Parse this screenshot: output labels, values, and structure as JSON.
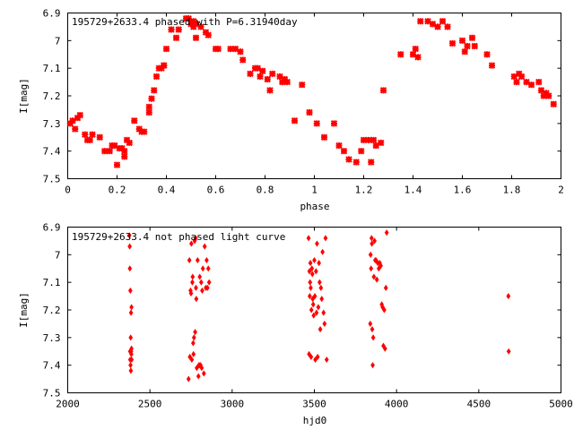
{
  "colors": {
    "points": "#ff0000",
    "frame": "#000000",
    "background": "#ffffff"
  },
  "chart_data": [
    {
      "type": "scatter",
      "title": "195729+2633.4 phased with P=6.31940day",
      "xlabel": "phase",
      "ylabel": "I[mag]",
      "xlim": [
        0,
        2
      ],
      "ylim": [
        6.9,
        7.5
      ],
      "y_inverted": true,
      "xticks": [
        "0",
        "0.2",
        "0.4",
        "0.6",
        "0.8",
        "1",
        "1.2",
        "1.4",
        "1.6",
        "1.8",
        "2"
      ],
      "yticks": [
        "6.9",
        "7",
        "7.1",
        "7.2",
        "7.3",
        "7.4",
        "7.5"
      ],
      "marker": "cross",
      "grid": false,
      "x": [
        0.01,
        0.02,
        0.03,
        0.04,
        0.05,
        0.07,
        0.08,
        0.09,
        0.1,
        0.13,
        0.15,
        0.17,
        0.18,
        0.19,
        0.2,
        0.21,
        0.22,
        0.23,
        0.23,
        0.24,
        0.25,
        0.27,
        0.29,
        0.3,
        0.31,
        0.33,
        0.33,
        0.34,
        0.35,
        0.36,
        0.37,
        0.38,
        0.39,
        0.39,
        0.4,
        0.42,
        0.44,
        0.45,
        0.48,
        0.49,
        0.5,
        0.51,
        0.51,
        0.52,
        0.52,
        0.54,
        0.56,
        0.57,
        0.6,
        0.61,
        0.66,
        0.68,
        0.7,
        0.71,
        0.74,
        0.76,
        0.77,
        0.78,
        0.79,
        0.81,
        0.82,
        0.83,
        0.86,
        0.87,
        0.88,
        0.89,
        0.92,
        0.95,
        0.98,
        1.01,
        1.04,
        1.08,
        1.1,
        1.12,
        1.14,
        1.17,
        1.19,
        1.2,
        1.22,
        1.23,
        1.24,
        1.25,
        1.27,
        1.28,
        1.35,
        1.4,
        1.41,
        1.42,
        1.43,
        1.46,
        1.48,
        1.5,
        1.52,
        1.54,
        1.56,
        1.6,
        1.61,
        1.62,
        1.64,
        1.65,
        1.7,
        1.72,
        1.81,
        1.82,
        1.83,
        1.84,
        1.86,
        1.88,
        1.91,
        1.92,
        1.93,
        1.94,
        1.95,
        1.97
      ],
      "y": [
        7.3,
        7.29,
        7.32,
        7.28,
        7.27,
        7.34,
        7.36,
        7.36,
        7.34,
        7.35,
        7.4,
        7.4,
        7.38,
        7.38,
        7.45,
        7.39,
        7.39,
        7.4,
        7.42,
        7.36,
        7.37,
        7.29,
        7.32,
        7.33,
        7.33,
        7.26,
        7.24,
        7.21,
        7.18,
        7.13,
        7.1,
        7.1,
        7.09,
        7.09,
        7.03,
        6.96,
        6.99,
        6.96,
        6.92,
        6.92,
        6.94,
        6.95,
        6.93,
        6.99,
        6.94,
        6.95,
        6.97,
        6.98,
        7.03,
        7.03,
        7.03,
        7.03,
        7.04,
        7.07,
        7.12,
        7.1,
        7.1,
        7.13,
        7.11,
        7.14,
        7.18,
        7.12,
        7.13,
        7.15,
        7.14,
        7.15,
        7.29,
        7.16,
        7.26,
        7.3,
        7.35,
        7.3,
        7.38,
        7.4,
        7.43,
        7.44,
        7.4,
        7.36,
        7.36,
        7.44,
        7.36,
        7.38,
        7.37,
        7.18,
        7.05,
        7.05,
        7.03,
        7.06,
        6.93,
        6.93,
        6.94,
        6.95,
        6.93,
        6.95,
        7.01,
        7.0,
        7.04,
        7.02,
        6.99,
        7.02,
        7.05,
        7.09,
        7.13,
        7.15,
        7.12,
        7.13,
        7.15,
        7.16,
        7.15,
        7.18,
        7.2,
        7.19,
        7.2,
        7.23
      ]
    },
    {
      "type": "scatter",
      "title": "195729+2633.4 not phased light curve",
      "xlabel": "hjd0",
      "ylabel": "I[mag]",
      "xlim": [
        2000,
        5000
      ],
      "ylim": [
        6.9,
        7.5
      ],
      "y_inverted": true,
      "xticks": [
        "2000",
        "2500",
        "3000",
        "3500",
        "4000",
        "4500",
        "5000"
      ],
      "yticks": [
        "6.9",
        "7",
        "7.1",
        "7.2",
        "7.3",
        "7.4",
        "7.5"
      ],
      "marker": "diamond",
      "grid": false,
      "x": [
        2375,
        2377,
        2378,
        2379,
        2380,
        2381,
        2382,
        2383,
        2384,
        2385,
        2386,
        2387,
        2388,
        2389,
        2388,
        2735,
        2740,
        2743,
        2747,
        2750,
        2752,
        2755,
        2758,
        2760,
        2763,
        2765,
        2768,
        2772,
        2775,
        2778,
        2780,
        2782,
        2785,
        2790,
        2795,
        2798,
        2800,
        2803,
        2808,
        2812,
        2815,
        2818,
        2822,
        2828,
        2833,
        2840,
        2845,
        2850,
        2855,
        2860,
        3465,
        3468,
        3470,
        3472,
        3474,
        3476,
        3478,
        3480,
        3482,
        3485,
        3488,
        3490,
        3493,
        3496,
        3500,
        3503,
        3506,
        3510,
        3513,
        3516,
        3520,
        3524,
        3528,
        3532,
        3536,
        3540,
        3545,
        3550,
        3556,
        3562,
        3568,
        3575,
        3840,
        3842,
        3845,
        3848,
        3850,
        3852,
        3855,
        3858,
        3862,
        3866,
        3870,
        3875,
        3880,
        3886,
        3892,
        3898,
        3904,
        3910,
        3915,
        3920,
        3925,
        3930,
        3935,
        3940,
        4680,
        4682
      ],
      "y": [
        6.93,
        6.97,
        7.05,
        7.35,
        7.38,
        7.13,
        7.4,
        7.3,
        7.42,
        7.21,
        7.35,
        7.36,
        7.34,
        7.38,
        7.19,
        7.45,
        7.02,
        7.37,
        7.13,
        7.14,
        6.96,
        7.38,
        7.1,
        7.08,
        7.32,
        7.36,
        7.3,
        6.95,
        7.28,
        6.94,
        7.12,
        7.16,
        7.41,
        7.02,
        7.44,
        7.4,
        7.4,
        7.08,
        7.4,
        7.1,
        7.41,
        7.13,
        7.05,
        7.43,
        6.97,
        7.12,
        7.02,
        7.12,
        7.05,
        7.1,
        6.94,
        7.36,
        7.06,
        7.15,
        7.1,
        7.03,
        7.12,
        7.37,
        7.2,
        7.05,
        7.07,
        7.16,
        7.18,
        7.22,
        7.02,
        7.15,
        7.38,
        7.06,
        7.21,
        6.96,
        7.37,
        7.19,
        7.03,
        7.1,
        7.27,
        7.12,
        7.16,
        6.99,
        7.21,
        7.25,
        6.94,
        7.38,
        7.25,
        7.0,
        7.05,
        6.94,
        6.96,
        7.27,
        7.4,
        7.3,
        7.08,
        6.95,
        7.02,
        7.02,
        7.09,
        7.03,
        7.05,
        7.03,
        7.04,
        7.18,
        7.19,
        7.33,
        7.2,
        7.34,
        7.12,
        6.92,
        7.15,
        7.35
      ]
    }
  ]
}
